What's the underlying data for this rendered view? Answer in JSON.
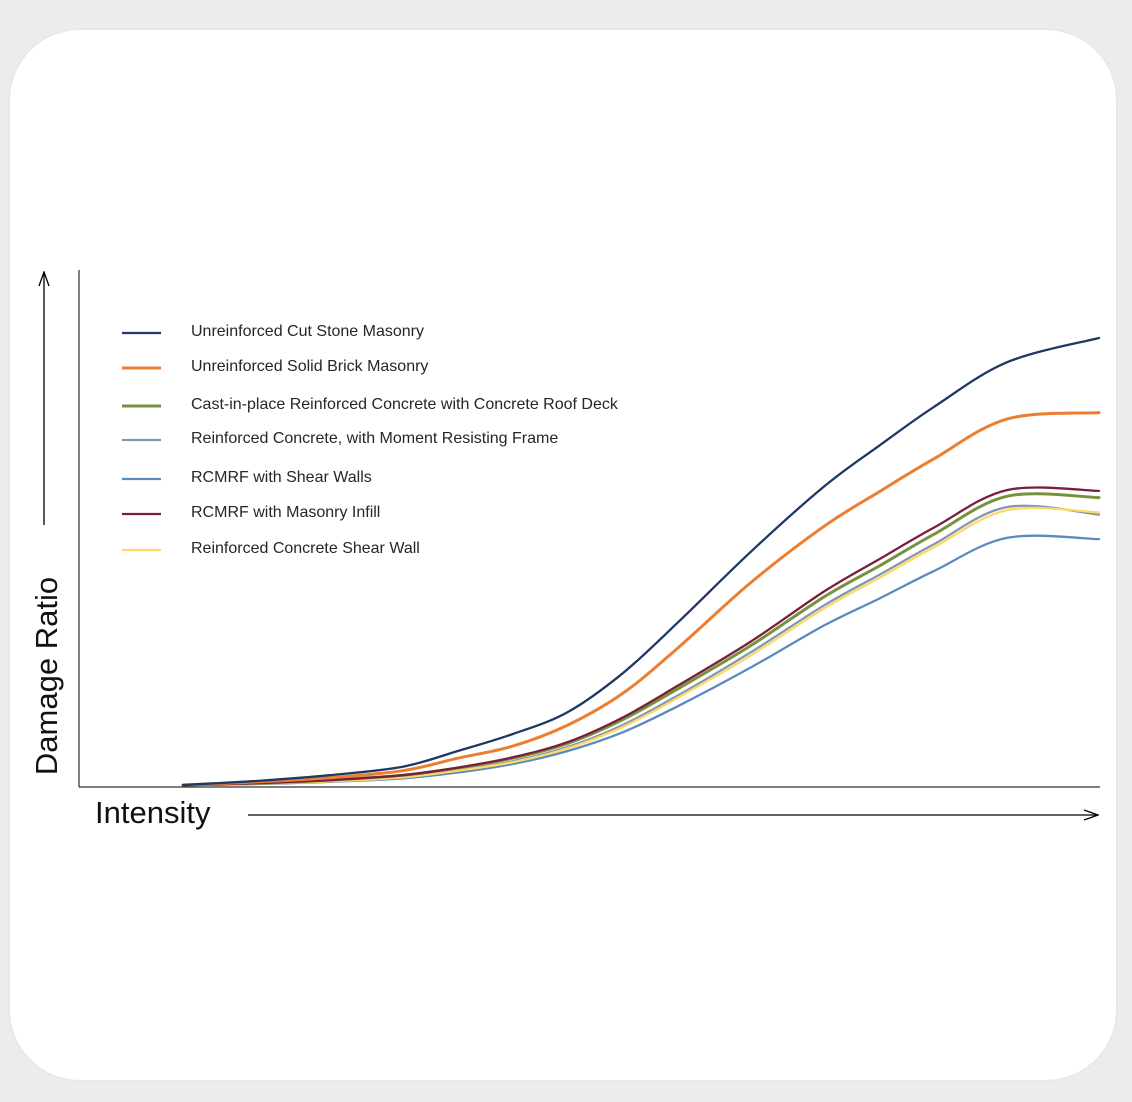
{
  "chart_data": {
    "type": "line",
    "xlabel": "Intensity",
    "ylabel": "Damage Ratio",
    "xlim": [
      0,
      100
    ],
    "ylim": [
      0,
      100
    ],
    "ticks_shown": false,
    "grid": false,
    "legend_placement": "top-left",
    "x": [
      0,
      8,
      16,
      24,
      30,
      36,
      42,
      48,
      54,
      62,
      70,
      76,
      82,
      90,
      100
    ],
    "series": [
      {
        "name": "Unreinforced Cut Stone Masonry",
        "color": "#1f3864",
        "values": [
          0,
          0.9,
          2.2,
          4.1,
          7.6,
          11.4,
          16.3,
          25.0,
          36.3,
          52.2,
          66.8,
          75.9,
          84.6,
          94.6,
          100
        ]
      },
      {
        "name": "Unreinforced Solid Brick Masonry",
        "color": "#ed7d31",
        "values": [
          0,
          0.7,
          1.6,
          3.2,
          6.0,
          8.7,
          13.4,
          20.5,
          30.6,
          45.3,
          57.9,
          65.6,
          73.0,
          81.9,
          83.3
        ]
      },
      {
        "name": "Cast-in-place Reinforced Concrete with Concrete Roof Deck",
        "color": "#76923c",
        "values": [
          0,
          0.4,
          1.1,
          2.2,
          3.8,
          6.0,
          9.3,
          14.6,
          21.5,
          31.2,
          42.1,
          49.0,
          56.1,
          64.6,
          64.3
        ]
      },
      {
        "name": "Reinforced Concrete, with Moment Resisting Frame",
        "color": "#8497b0",
        "values": [
          0,
          0.3,
          0.9,
          1.8,
          3.3,
          5.3,
          8.5,
          13.4,
          20.0,
          29.7,
          40.2,
          47.0,
          53.9,
          62.2,
          60.5
        ]
      },
      {
        "name": "RCMRF with Shear Walls",
        "color": "#5b8ac1",
        "values": [
          0,
          0.2,
          0.7,
          1.5,
          2.8,
          4.7,
          7.6,
          11.8,
          17.6,
          26.3,
          35.7,
          41.7,
          47.9,
          55.3,
          55.0
        ]
      },
      {
        "name": "RCMRF with Masonry Infill",
        "color": "#7b1e3a",
        "values": [
          0,
          0.4,
          1.1,
          2.2,
          3.9,
          6.2,
          9.6,
          15.1,
          22.2,
          32.1,
          43.3,
          50.5,
          57.6,
          66.0,
          65.8
        ]
      },
      {
        "name": "Reinforced Concrete Shear Wall",
        "color": "#ffd966",
        "values": [
          0,
          0.3,
          0.8,
          1.7,
          3.2,
          5.1,
          8.2,
          13.0,
          19.5,
          29.0,
          39.5,
          46.3,
          53.2,
          61.5,
          61.0
        ]
      }
    ]
  }
}
